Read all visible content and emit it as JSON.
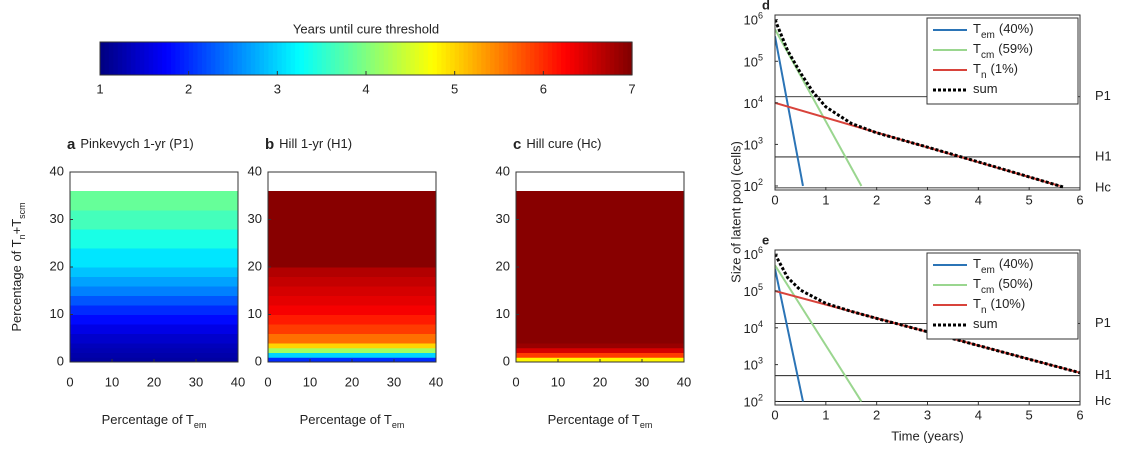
{
  "chart_data": [
    {
      "type": "colorbar",
      "title": "Years until cure threshold",
      "colormap": "jet",
      "lim": [
        1,
        7
      ],
      "ticks": [
        1,
        2,
        3,
        4,
        5,
        6,
        7
      ]
    },
    {
      "type": "heatmap",
      "label": "a",
      "title": "Pinkevych 1-yr (P1)",
      "xlabel": [
        {
          "t": "Percentage of T"
        },
        {
          "t": "em",
          "sub": true
        }
      ],
      "ylabel": [
        {
          "t": "Percentage of T"
        },
        {
          "t": "n",
          "sub": true
        },
        {
          "t": "+T"
        },
        {
          "t": "scm",
          "sub": true
        }
      ],
      "xlim": [
        0,
        40
      ],
      "ylim": [
        0,
        40
      ],
      "xticks": [
        0,
        10,
        20,
        30,
        40
      ],
      "yticks": [
        0,
        10,
        20,
        30,
        40
      ],
      "ybins": [
        0,
        1,
        2,
        3,
        4,
        6,
        8,
        10,
        12,
        14,
        16,
        18,
        20,
        24,
        28,
        32,
        36,
        40
      ],
      "values": [
        1.2,
        1.25,
        1.3,
        1.35,
        1.45,
        1.6,
        1.8,
        2.0,
        2.25,
        2.5,
        2.7,
        2.9,
        3.1,
        3.4,
        3.65,
        3.85
      ]
    },
    {
      "type": "heatmap",
      "label": "b",
      "title": "Hill 1-yr (H1)",
      "xlabel": [
        {
          "t": "Percentage of T"
        },
        {
          "t": "em",
          "sub": true
        }
      ],
      "xlim": [
        0,
        40
      ],
      "ylim": [
        0,
        40
      ],
      "xticks": [
        0,
        10,
        20,
        30,
        40
      ],
      "yticks": [
        0,
        10,
        20,
        30,
        40
      ],
      "ybins": [
        0,
        1,
        2,
        3,
        4,
        6,
        8,
        10,
        12,
        14,
        16,
        18,
        20,
        24,
        28,
        32,
        36,
        40
      ],
      "values": [
        2.0,
        3.0,
        4.2,
        5.0,
        5.6,
        5.9,
        6.1,
        6.3,
        6.4,
        6.5,
        6.6,
        6.7,
        6.95,
        6.95,
        6.95,
        6.95
      ]
    },
    {
      "type": "heatmap",
      "label": "c",
      "title": "Hill cure (Hc)",
      "xlabel": [
        {
          "t": "Percentage of T"
        },
        {
          "t": "em",
          "sub": true
        }
      ],
      "xlim": [
        0,
        40
      ],
      "ylim": [
        0,
        40
      ],
      "xticks": [
        0,
        10,
        20,
        30,
        40
      ],
      "yticks": [
        0,
        10,
        20,
        30,
        40
      ],
      "ybins": [
        0,
        1,
        2,
        3,
        4,
        6,
        8,
        10,
        12,
        14,
        16,
        18,
        20,
        24,
        28,
        32,
        36,
        40
      ],
      "values": [
        4.8,
        5.9,
        6.5,
        6.85,
        6.95,
        6.95,
        6.95,
        6.95,
        6.95,
        6.95,
        6.95,
        6.95,
        6.95,
        6.95,
        6.95,
        6.95
      ]
    },
    {
      "type": "line",
      "label": "d",
      "log_y": true,
      "ylabel": "Size of latent pool (cells)",
      "xlim": [
        0,
        6
      ],
      "xticks": [
        0,
        1,
        2,
        3,
        4,
        5,
        6
      ],
      "ylim": [
        80,
        1300000
      ],
      "yticks": [
        {
          "value": 100,
          "label": "10",
          "exp": "2"
        },
        {
          "value": 1000,
          "label": "10",
          "exp": "3"
        },
        {
          "value": 10000,
          "label": "10",
          "exp": "4"
        },
        {
          "value": 100000,
          "label": "10",
          "exp": "5"
        },
        {
          "value": 1000000,
          "label": "10",
          "exp": "6"
        }
      ],
      "series": [
        {
          "name": "T",
          "sub": "em",
          "pct": "(40%)",
          "color": "#2b74b6",
          "x": [
            0,
            0.55
          ],
          "values": [
            400000,
            100
          ]
        },
        {
          "name": "T",
          "sub": "cm",
          "pct": "(59%)",
          "color": "#9ad68f",
          "x": [
            0,
            1.7
          ],
          "values": [
            590000,
            100
          ]
        },
        {
          "name": "T",
          "sub": "n",
          "pct": "(1%)",
          "color": "#d8433b",
          "x": [
            0,
            5.6
          ],
          "values": [
            10000,
            100
          ]
        },
        {
          "name": "sum",
          "color": "#000000",
          "dash": true,
          "x": [
            0,
            0.25,
            0.5,
            0.75,
            1,
            1.5,
            2,
            3,
            4,
            5,
            5.7
          ],
          "values": [
            1000000,
            180000,
            53000,
            18000,
            8000,
            3200,
            1900,
            860,
            380,
            165,
            92
          ]
        }
      ],
      "thresholds": [
        {
          "label": "P1",
          "value": 14000
        },
        {
          "label": "H1",
          "value": 500
        },
        {
          "label": "Hc",
          "value": 90
        }
      ]
    },
    {
      "type": "line",
      "label": "e",
      "log_y": true,
      "xlabel": "Time (years)",
      "xlim": [
        0,
        6
      ],
      "xticks": [
        0,
        1,
        2,
        3,
        4,
        5,
        6
      ],
      "ylim": [
        80,
        1300000
      ],
      "yticks": [
        {
          "value": 100,
          "label": "10",
          "exp": "2"
        },
        {
          "value": 1000,
          "label": "10",
          "exp": "3"
        },
        {
          "value": 10000,
          "label": "10",
          "exp": "4"
        },
        {
          "value": 100000,
          "label": "10",
          "exp": "5"
        },
        {
          "value": 1000000,
          "label": "10",
          "exp": "6"
        }
      ],
      "series": [
        {
          "name": "T",
          "sub": "em",
          "pct": "(40%)",
          "color": "#2b74b6",
          "x": [
            0,
            0.55
          ],
          "values": [
            400000,
            100
          ]
        },
        {
          "name": "T",
          "sub": "cm",
          "pct": "(50%)",
          "color": "#9ad68f",
          "x": [
            0,
            1.7
          ],
          "values": [
            500000,
            100
          ]
        },
        {
          "name": "T",
          "sub": "n",
          "pct": "(10%)",
          "color": "#d8433b",
          "x": [
            0,
            6
          ],
          "values": [
            100000,
            600
          ]
        },
        {
          "name": "sum",
          "color": "#000000",
          "dash": true,
          "x": [
            0,
            0.25,
            0.5,
            1,
            1.5,
            2,
            3,
            4,
            5,
            6
          ],
          "values": [
            1000000,
            230000,
            106000,
            46000,
            28000,
            18000,
            7800,
            3300,
            1400,
            600
          ]
        }
      ],
      "thresholds": [
        {
          "label": "P1",
          "value": 13000
        },
        {
          "label": "H1",
          "value": 500
        },
        {
          "label": "Hc",
          "value": 100
        }
      ]
    }
  ]
}
